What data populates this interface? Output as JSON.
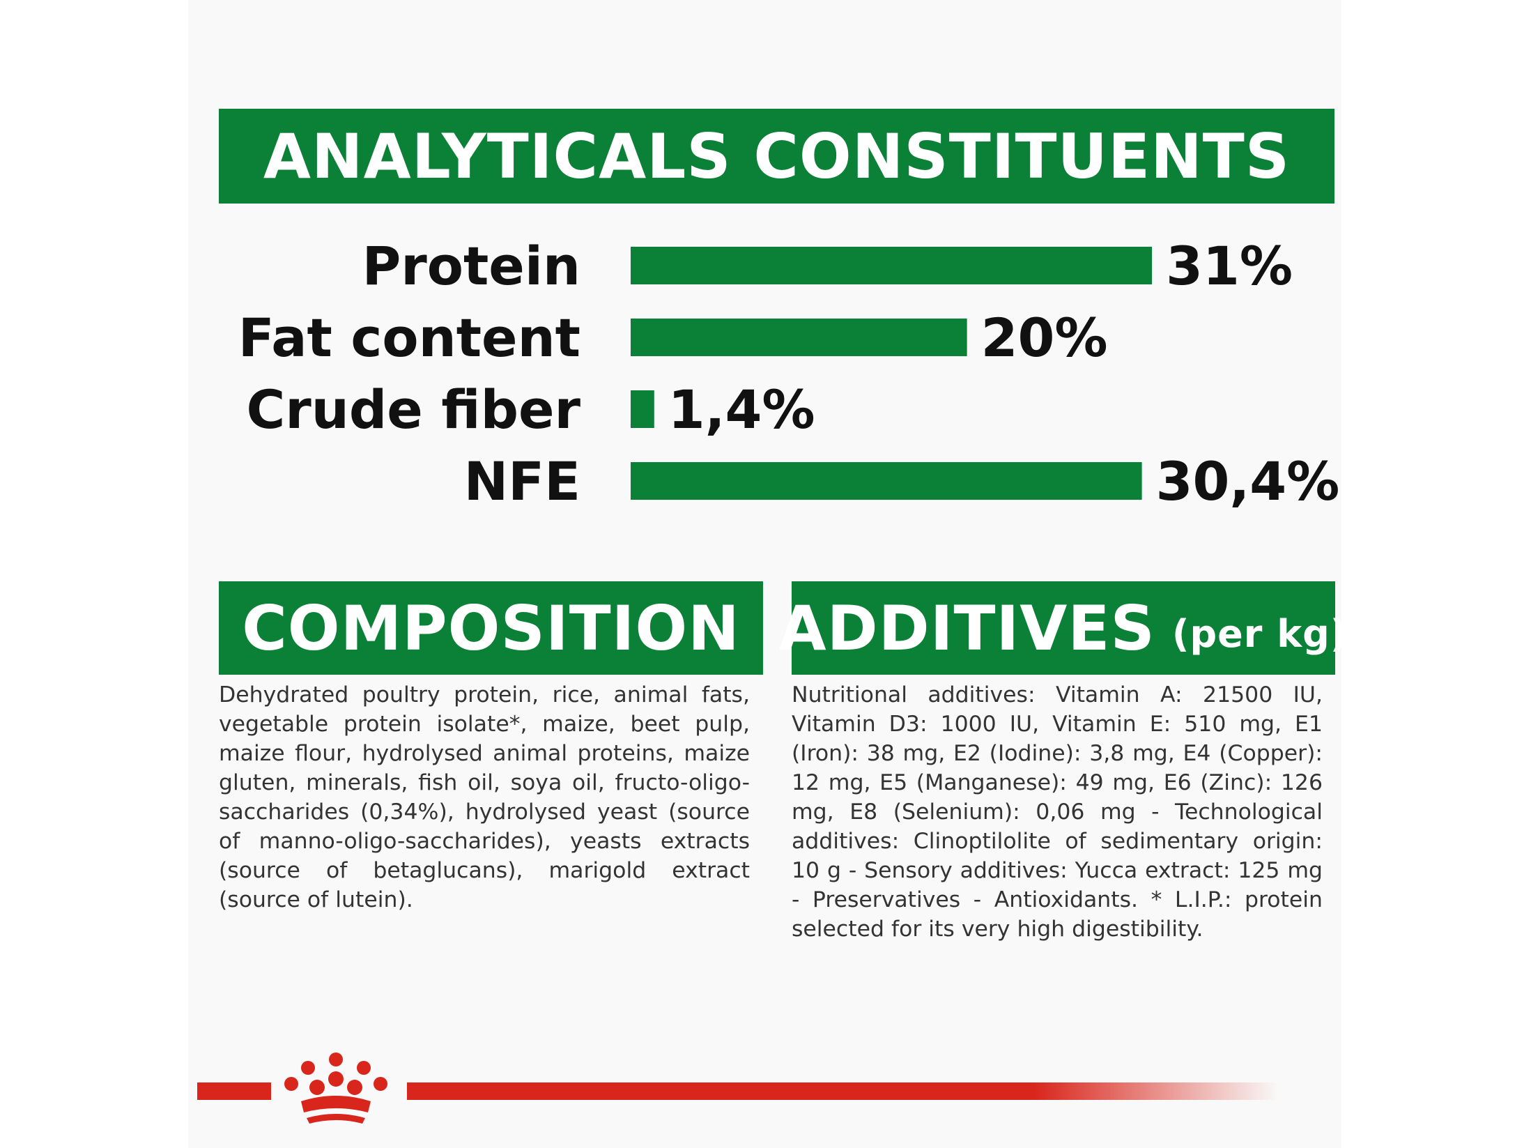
{
  "analytical_header": "ANALYTICALS CONSTITUENTS",
  "composition_header": "COMPOSITION",
  "additives_header": "ADDITIVES",
  "additives_header_sub": "(per kg)",
  "composition_text": "Dehydrated poultry protein, rice, animal fats, vegetable protein isolate*, maize, beet pulp, maize flour, hydrolysed animal proteins, maize gluten, minerals, fish oil, soya oil, fructo-oligo-saccharides (0,34%), hydrolysed yeast (source of manno-oligo-saccharides), yeasts extracts (source of betaglucans), marigold extract (source of lutein).",
  "additives_text": "Nutritional additives: Vitamin A: 21500 IU, Vitamin D3: 1000 IU, Vitamin E: 510 mg, E1 (Iron): 38 mg, E2 (Iodine): 3,8 mg, E4 (Copper): 12 mg, E5 (Manganese): 49 mg, E6 (Zinc): 126 mg, E8 (Selenium): 0,06 mg - Technological additives: Clinoptilolite of sedimentary origin: 10 g - Sensory additives: Yucca extract: 125 mg - Preservatives - Antioxidants. * L.I.P.: protein selected for its very high digestibility.",
  "colors": {
    "green": "#0b8138",
    "red": "#d9261c",
    "panel": "#f8f9f8"
  },
  "logo_icon": "crown-logo-icon",
  "chart_data": {
    "type": "bar",
    "orientation": "horizontal",
    "title": "ANALYTICALS CONSTITUENTS",
    "categories": [
      "Protein",
      "Fat content",
      "Crude fiber",
      "NFE"
    ],
    "values": [
      31,
      20,
      1.4,
      30.4
    ],
    "value_labels": [
      "31%",
      "20%",
      "1,4%",
      "30,4%"
    ],
    "unit": "%",
    "xlim": [
      0,
      31.7
    ],
    "grid": false,
    "legend": "none"
  }
}
